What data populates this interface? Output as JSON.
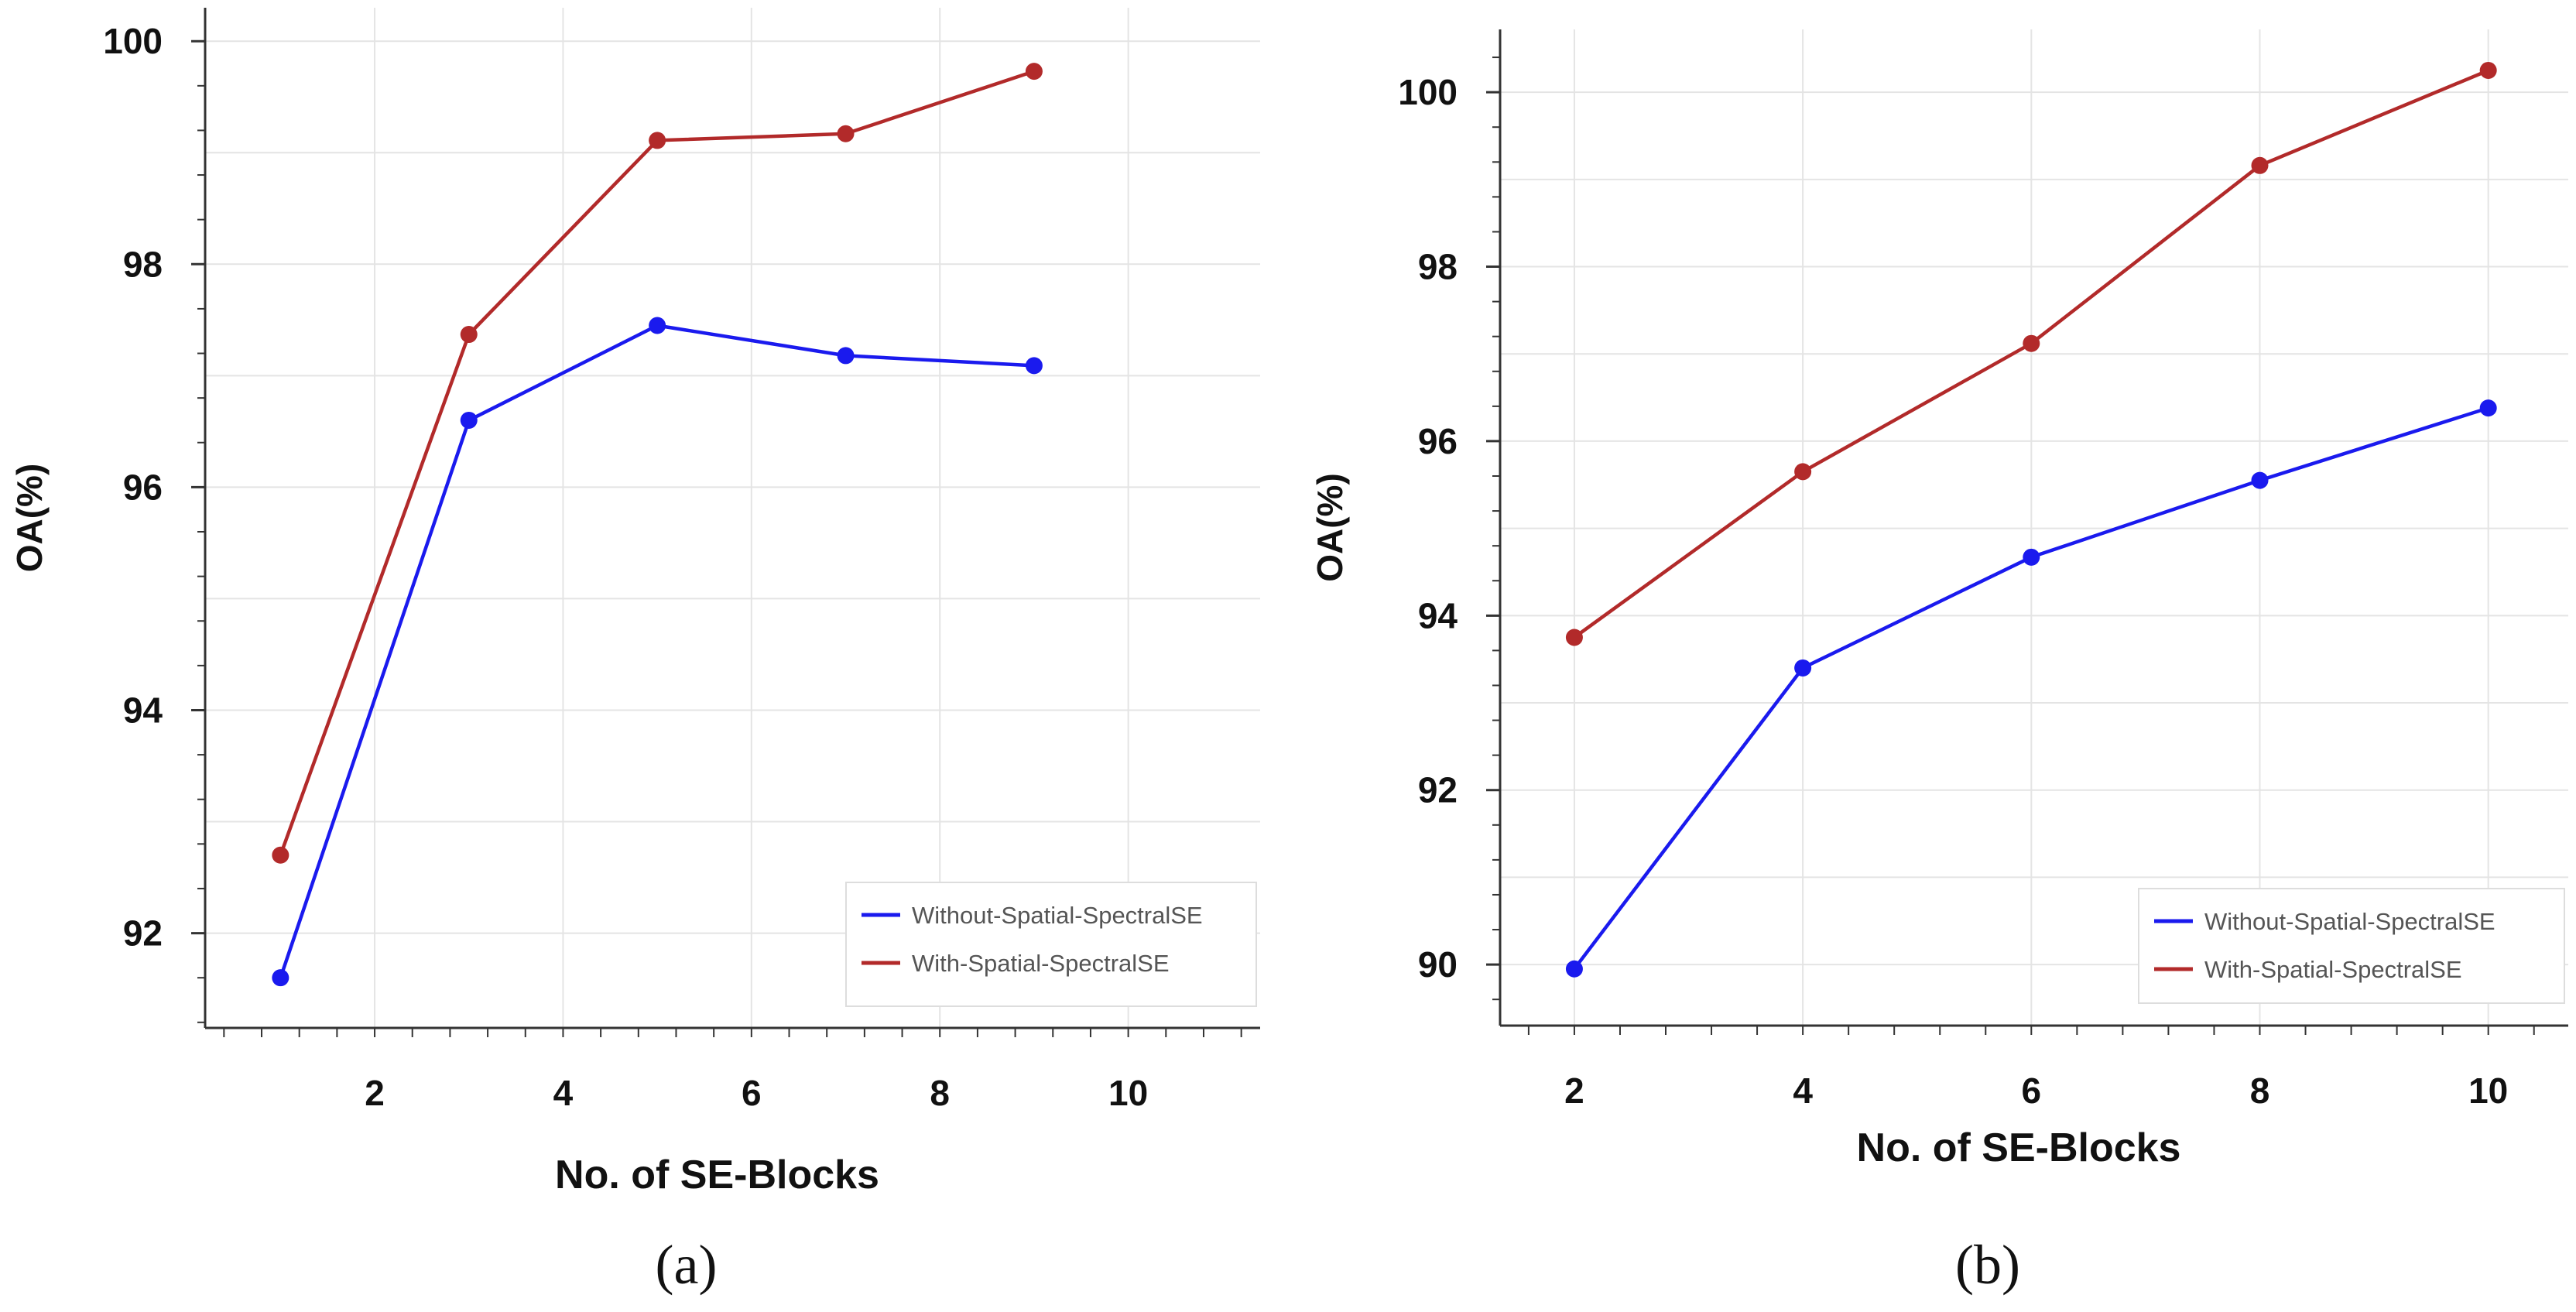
{
  "colors": {
    "series_without": "#1a1aee",
    "series_with": "#b22a2a",
    "grid": "#e4e4e4",
    "axis": "#333333"
  },
  "chart_data": [
    {
      "type": "line",
      "panel_label": "(a)",
      "xlabel": "No. of SE-Blocks",
      "ylabel": "OA(%)",
      "xlim": [
        0.2,
        11.4
      ],
      "ylim": [
        91.15,
        100.3
      ],
      "xticks": [
        2,
        4,
        6,
        8,
        10
      ],
      "yticks": [
        92,
        94,
        96,
        98,
        100
      ],
      "grid": true,
      "legend_position": "bottom-right",
      "series": [
        {
          "name": "Without-Spatial-SpectralSE",
          "color": "#1a1aee",
          "x": [
            1,
            3,
            5,
            7,
            9
          ],
          "y": [
            91.6,
            96.6,
            97.45,
            97.18,
            97.09
          ]
        },
        {
          "name": "With-Spatial-SpectralSE",
          "color": "#b22a2a",
          "x": [
            1,
            3,
            5,
            7,
            9
          ],
          "y": [
            92.7,
            97.37,
            99.11,
            99.17,
            99.73
          ]
        }
      ]
    },
    {
      "type": "line",
      "panel_label": "(b)",
      "xlabel": "No. of SE-Blocks",
      "ylabel": "OA(%)",
      "xlim": [
        1.35,
        10.7
      ],
      "ylim": [
        89.3,
        100.72
      ],
      "xticks": [
        2,
        4,
        6,
        8,
        10
      ],
      "yticks": [
        90,
        92,
        94,
        96,
        98,
        100
      ],
      "grid": true,
      "legend_position": "bottom-right",
      "series": [
        {
          "name": "Without-Spatial-SpectralSE",
          "color": "#1a1aee",
          "x": [
            2,
            4,
            6,
            8,
            10
          ],
          "y": [
            89.95,
            93.4,
            94.67,
            95.55,
            96.38
          ]
        },
        {
          "name": "With-Spatial-SpectralSE",
          "color": "#b22a2a",
          "x": [
            2,
            4,
            6,
            8,
            10
          ],
          "y": [
            93.75,
            95.65,
            97.12,
            99.16,
            100.25
          ]
        }
      ]
    }
  ]
}
